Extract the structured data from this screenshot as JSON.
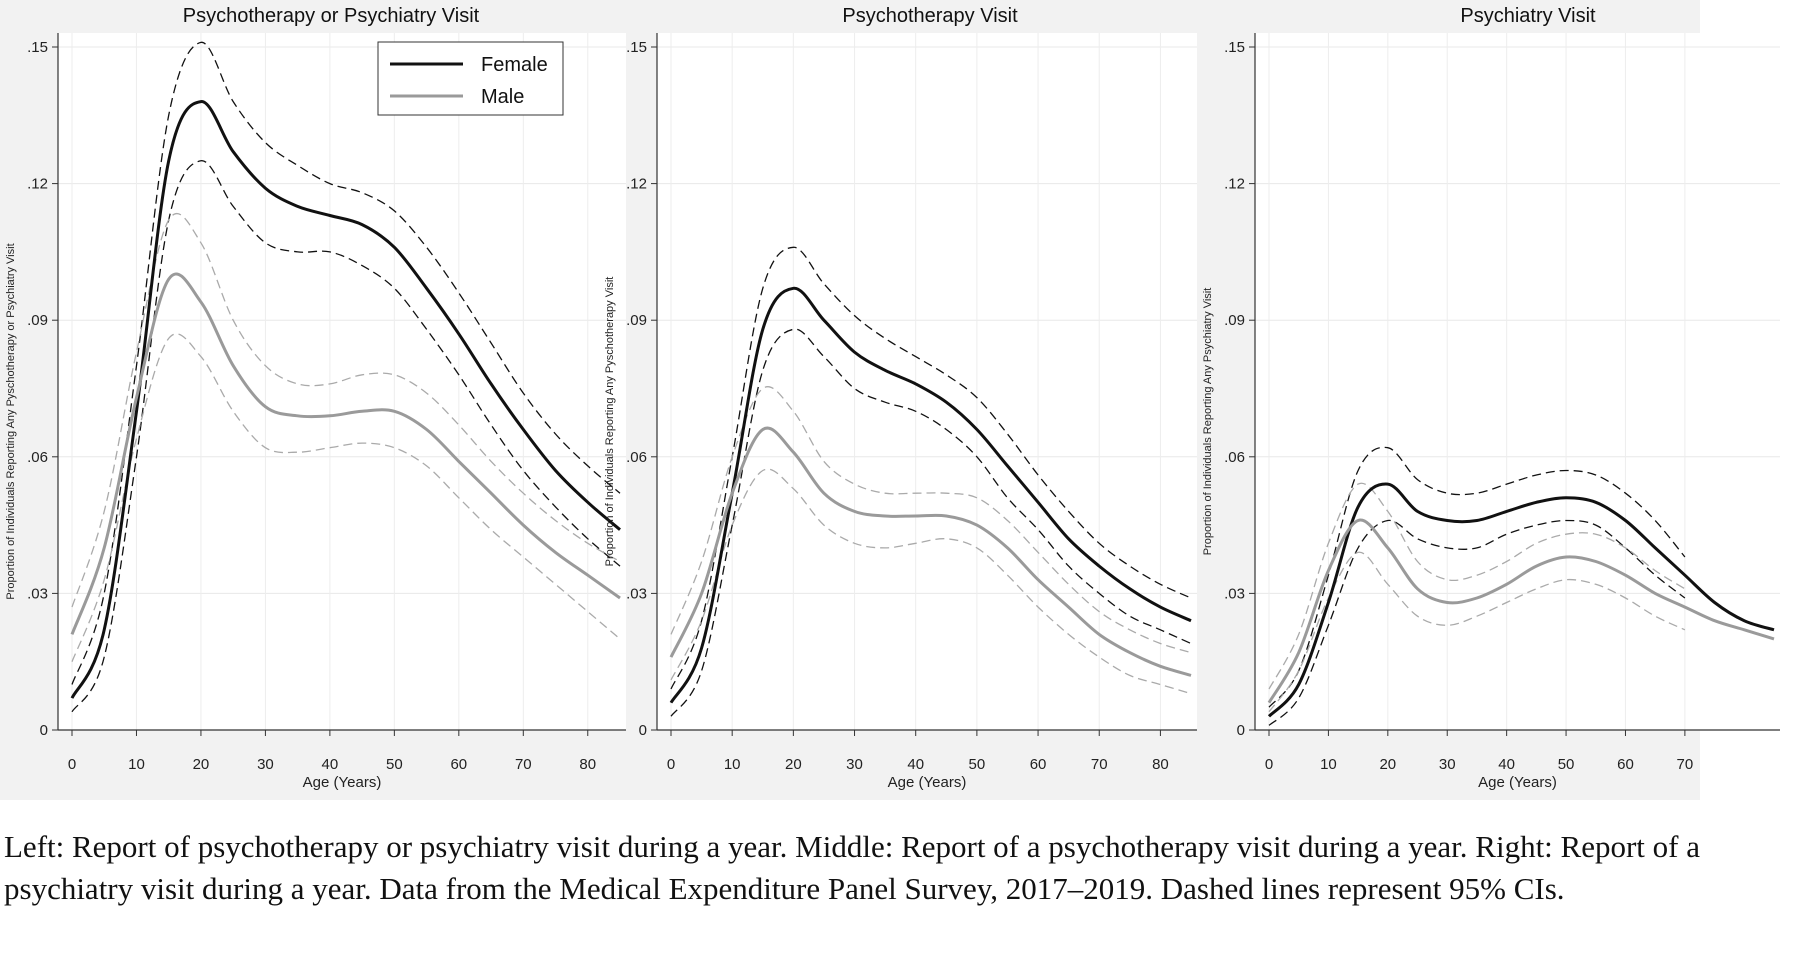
{
  "chart_data": [
    {
      "type": "line",
      "title": "Psychotherapy or Psychiatry Visit",
      "xlabel": "Age (Years)",
      "ylabel": "Proportion of Individuals Reporting Any Pyschotherapy or Psychiatry Visit",
      "xlim": [
        0,
        85
      ],
      "ylim": [
        0,
        0.15
      ],
      "xticks": [
        0,
        10,
        20,
        30,
        40,
        50,
        60,
        70,
        80
      ],
      "yticks": [
        0,
        0.03,
        0.06,
        0.09,
        0.12,
        0.15
      ],
      "ytick_labels": [
        "0",
        ".03",
        ".06",
        ".09",
        ".12",
        ".15"
      ],
      "legend": {
        "position": "top-right",
        "entries": [
          "Female",
          "Male"
        ]
      },
      "series": [
        {
          "name": "Female",
          "color": "#111111",
          "style": "solid",
          "x": [
            0,
            5,
            10,
            15,
            20,
            25,
            30,
            35,
            40,
            45,
            50,
            55,
            60,
            65,
            70,
            75,
            80,
            85
          ],
          "y": [
            0.007,
            0.022,
            0.07,
            0.125,
            0.138,
            0.127,
            0.119,
            0.115,
            0.113,
            0.111,
            0.106,
            0.097,
            0.087,
            0.076,
            0.066,
            0.057,
            0.05,
            0.044
          ]
        },
        {
          "name": "Female",
          "color": "#111111",
          "style": "dashed",
          "role": "upper CI",
          "x": [
            0,
            5,
            10,
            15,
            20,
            25,
            30,
            35,
            40,
            45,
            50,
            55,
            60,
            65,
            70,
            75,
            80,
            85
          ],
          "y": [
            0.01,
            0.03,
            0.08,
            0.135,
            0.151,
            0.138,
            0.129,
            0.124,
            0.12,
            0.118,
            0.114,
            0.106,
            0.096,
            0.085,
            0.074,
            0.065,
            0.058,
            0.052
          ]
        },
        {
          "name": "Female",
          "color": "#111111",
          "style": "dashed",
          "role": "lower CI",
          "x": [
            0,
            5,
            10,
            15,
            20,
            25,
            30,
            35,
            40,
            45,
            50,
            55,
            60,
            65,
            70,
            75,
            80,
            85
          ],
          "y": [
            0.004,
            0.016,
            0.06,
            0.112,
            0.125,
            0.115,
            0.107,
            0.105,
            0.105,
            0.102,
            0.097,
            0.088,
            0.078,
            0.067,
            0.057,
            0.049,
            0.042,
            0.036
          ]
        },
        {
          "name": "Male",
          "color": "#9a9a9a",
          "style": "solid",
          "x": [
            0,
            5,
            10,
            15,
            20,
            25,
            30,
            35,
            40,
            45,
            50,
            55,
            60,
            65,
            70,
            75,
            80,
            85
          ],
          "y": [
            0.021,
            0.04,
            0.073,
            0.099,
            0.094,
            0.08,
            0.071,
            0.069,
            0.069,
            0.07,
            0.07,
            0.066,
            0.059,
            0.052,
            0.045,
            0.039,
            0.034,
            0.029
          ]
        },
        {
          "name": "Male",
          "color": "#aaaaaa",
          "style": "dashed",
          "role": "upper CI",
          "x": [
            0,
            5,
            10,
            15,
            20,
            25,
            30,
            35,
            40,
            45,
            50,
            55,
            60,
            65,
            70,
            75,
            80,
            85
          ],
          "y": [
            0.027,
            0.048,
            0.083,
            0.112,
            0.107,
            0.09,
            0.08,
            0.076,
            0.076,
            0.078,
            0.078,
            0.074,
            0.067,
            0.059,
            0.052,
            0.046,
            0.041,
            0.037
          ]
        },
        {
          "name": "Male",
          "color": "#aaaaaa",
          "style": "dashed",
          "role": "lower CI",
          "x": [
            0,
            5,
            10,
            15,
            20,
            25,
            30,
            35,
            40,
            45,
            50,
            55,
            60,
            65,
            70,
            75,
            80,
            85
          ],
          "y": [
            0.015,
            0.033,
            0.064,
            0.086,
            0.082,
            0.07,
            0.062,
            0.061,
            0.062,
            0.063,
            0.062,
            0.058,
            0.051,
            0.044,
            0.038,
            0.032,
            0.026,
            0.02
          ]
        }
      ]
    },
    {
      "type": "line",
      "title": "Psychotherapy Visit",
      "xlabel": "Age (Years)",
      "ylabel": "Proportion of Individuals Reporting Any Pyschotherapy Visit",
      "xlim": [
        0,
        85
      ],
      "ylim": [
        0,
        0.15
      ],
      "xticks": [
        0,
        10,
        20,
        30,
        40,
        50,
        60,
        70,
        80
      ],
      "yticks": [
        0,
        0.03,
        0.06,
        0.09,
        0.12,
        0.15
      ],
      "ytick_labels": [
        "0",
        ".03",
        ".06",
        ".09",
        ".12",
        ".15"
      ],
      "series": [
        {
          "name": "Female",
          "color": "#111111",
          "style": "solid",
          "x": [
            0,
            5,
            10,
            15,
            20,
            25,
            30,
            35,
            40,
            45,
            50,
            55,
            60,
            65,
            70,
            75,
            80,
            85
          ],
          "y": [
            0.006,
            0.018,
            0.052,
            0.088,
            0.097,
            0.09,
            0.083,
            0.079,
            0.076,
            0.072,
            0.066,
            0.058,
            0.05,
            0.042,
            0.036,
            0.031,
            0.027,
            0.024
          ]
        },
        {
          "name": "Female",
          "color": "#111111",
          "style": "dashed",
          "role": "upper CI",
          "x": [
            0,
            5,
            10,
            15,
            20,
            25,
            30,
            35,
            40,
            45,
            50,
            55,
            60,
            65,
            70,
            75,
            80,
            85
          ],
          "y": [
            0.009,
            0.024,
            0.06,
            0.097,
            0.106,
            0.098,
            0.091,
            0.086,
            0.082,
            0.078,
            0.073,
            0.065,
            0.056,
            0.048,
            0.041,
            0.036,
            0.032,
            0.029
          ]
        },
        {
          "name": "Female",
          "color": "#111111",
          "style": "dashed",
          "role": "lower CI",
          "x": [
            0,
            5,
            10,
            15,
            20,
            25,
            30,
            35,
            40,
            45,
            50,
            55,
            60,
            65,
            70,
            75,
            80,
            85
          ],
          "y": [
            0.003,
            0.013,
            0.045,
            0.079,
            0.088,
            0.082,
            0.075,
            0.072,
            0.07,
            0.066,
            0.06,
            0.051,
            0.044,
            0.036,
            0.03,
            0.025,
            0.022,
            0.019
          ]
        },
        {
          "name": "Male",
          "color": "#9a9a9a",
          "style": "solid",
          "x": [
            0,
            5,
            10,
            15,
            20,
            25,
            30,
            35,
            40,
            45,
            50,
            55,
            60,
            65,
            70,
            75,
            80,
            85
          ],
          "y": [
            0.016,
            0.03,
            0.052,
            0.066,
            0.061,
            0.052,
            0.048,
            0.047,
            0.047,
            0.047,
            0.045,
            0.04,
            0.033,
            0.027,
            0.021,
            0.017,
            0.014,
            0.012
          ]
        },
        {
          "name": "Male",
          "color": "#aaaaaa",
          "style": "dashed",
          "role": "upper CI",
          "x": [
            0,
            5,
            10,
            15,
            20,
            25,
            30,
            35,
            40,
            45,
            50,
            55,
            60,
            65,
            70,
            75,
            80,
            85
          ],
          "y": [
            0.021,
            0.037,
            0.06,
            0.075,
            0.07,
            0.059,
            0.054,
            0.052,
            0.052,
            0.052,
            0.051,
            0.046,
            0.039,
            0.032,
            0.026,
            0.022,
            0.019,
            0.017
          ]
        },
        {
          "name": "Male",
          "color": "#aaaaaa",
          "style": "dashed",
          "role": "lower CI",
          "x": [
            0,
            5,
            10,
            15,
            20,
            25,
            30,
            35,
            40,
            45,
            50,
            55,
            60,
            65,
            70,
            75,
            80,
            85
          ],
          "y": [
            0.011,
            0.024,
            0.045,
            0.057,
            0.053,
            0.045,
            0.041,
            0.04,
            0.041,
            0.042,
            0.04,
            0.034,
            0.027,
            0.021,
            0.016,
            0.012,
            0.01,
            0.008
          ]
        }
      ]
    },
    {
      "type": "line",
      "title": "Psychiatry Visit",
      "xlabel": "Age (Years)",
      "ylabel": "Proportion of Individuals Reporting Any Psychiatry Visit",
      "xlim": [
        0,
        85
      ],
      "ylim": [
        0,
        0.15
      ],
      "xticks": [
        0,
        10,
        20,
        30,
        40,
        50,
        60,
        70
      ],
      "yticks": [
        0,
        0.03,
        0.06,
        0.09,
        0.12,
        0.15
      ],
      "ytick_labels": [
        "0",
        ".03",
        ".06",
        ".09",
        ".12",
        ".15"
      ],
      "series": [
        {
          "name": "Female",
          "color": "#111111",
          "style": "solid",
          "x": [
            0,
            5,
            10,
            15,
            20,
            25,
            30,
            35,
            40,
            45,
            50,
            55,
            60,
            65,
            70,
            75,
            80,
            85
          ],
          "y": [
            0.003,
            0.01,
            0.028,
            0.049,
            0.054,
            0.048,
            0.046,
            0.046,
            0.048,
            0.05,
            0.051,
            0.05,
            0.046,
            0.04,
            0.034,
            0.028,
            0.024,
            0.022
          ]
        },
        {
          "name": "Female",
          "color": "#111111",
          "style": "dashed",
          "role": "upper CI",
          "x": [
            0,
            5,
            10,
            15,
            20,
            25,
            30,
            35,
            40,
            45,
            50,
            55,
            60,
            65,
            70
          ],
          "y": [
            0.005,
            0.013,
            0.034,
            0.057,
            0.062,
            0.055,
            0.052,
            0.052,
            0.054,
            0.056,
            0.057,
            0.056,
            0.052,
            0.046,
            0.038
          ]
        },
        {
          "name": "Female",
          "color": "#111111",
          "style": "dashed",
          "role": "lower CI",
          "x": [
            0,
            5,
            10,
            15,
            20,
            25,
            30,
            35,
            40,
            45,
            50,
            55,
            60,
            65,
            70
          ],
          "y": [
            0.001,
            0.007,
            0.023,
            0.04,
            0.046,
            0.042,
            0.04,
            0.04,
            0.043,
            0.045,
            0.046,
            0.045,
            0.04,
            0.034,
            0.029
          ]
        },
        {
          "name": "Male",
          "color": "#9a9a9a",
          "style": "solid",
          "x": [
            0,
            5,
            10,
            15,
            20,
            25,
            30,
            35,
            40,
            45,
            50,
            55,
            60,
            65,
            70,
            75,
            80,
            85
          ],
          "y": [
            0.006,
            0.017,
            0.035,
            0.046,
            0.04,
            0.031,
            0.028,
            0.029,
            0.032,
            0.036,
            0.038,
            0.037,
            0.034,
            0.03,
            0.027,
            0.024,
            0.022,
            0.02
          ]
        },
        {
          "name": "Male",
          "color": "#aaaaaa",
          "style": "dashed",
          "role": "upper CI",
          "x": [
            0,
            5,
            10,
            15,
            20,
            25,
            30,
            35,
            40,
            45,
            50,
            55,
            60,
            65,
            70
          ],
          "y": [
            0.009,
            0.021,
            0.041,
            0.054,
            0.048,
            0.037,
            0.033,
            0.034,
            0.037,
            0.041,
            0.043,
            0.043,
            0.04,
            0.035,
            0.031
          ]
        },
        {
          "name": "Male",
          "color": "#aaaaaa",
          "style": "dashed",
          "role": "lower CI",
          "x": [
            0,
            5,
            10,
            15,
            20,
            25,
            30,
            35,
            40,
            45,
            50,
            55,
            60,
            65,
            70
          ],
          "y": [
            0.004,
            0.013,
            0.029,
            0.039,
            0.032,
            0.025,
            0.023,
            0.025,
            0.028,
            0.031,
            0.033,
            0.032,
            0.029,
            0.025,
            0.022
          ]
        }
      ]
    }
  ],
  "caption": "Left: Report of psychotherapy or psychiatry visit during a year. Middle: Report of a psychotherapy visit during a year. Right: Report of a psychiatry visit during a year. Data from the Medical Expenditure Panel Survey, 2017–2019. Dashed lines represent 95% CIs."
}
